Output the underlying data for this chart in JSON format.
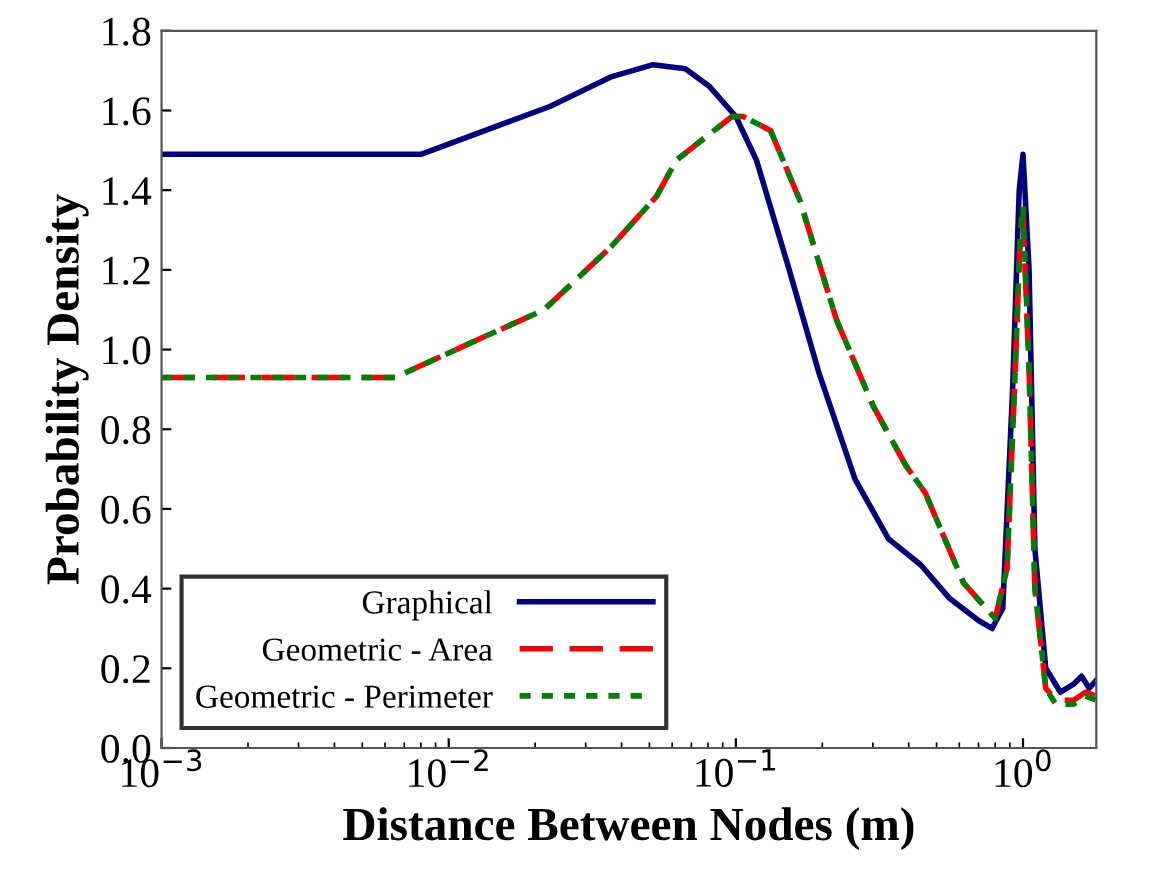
{
  "chart_data": {
    "type": "line",
    "xlabel": "Distance Between Nodes (m)",
    "ylabel": "Probability Density",
    "log": "x",
    "xlim": [
      0.001,
      1.8
    ],
    "ylim": [
      0,
      1.8
    ],
    "xticks": [
      {
        "value": 0.001,
        "label": "10$^{−3}$"
      },
      {
        "value": 0.01,
        "label": "10$^{−2}$"
      },
      {
        "value": 0.1,
        "label": "10$^{−1}$"
      },
      {
        "value": 1,
        "label": "10$^{0}$"
      }
    ],
    "yticks": [
      {
        "value": 0,
        "label": "0.0"
      },
      {
        "value": 0.2,
        "label": "0.2"
      },
      {
        "value": 0.4,
        "label": "0.4"
      },
      {
        "value": 0.6,
        "label": "0.6"
      },
      {
        "value": 0.8,
        "label": "0.8"
      },
      {
        "value": 1.0,
        "label": "1.0"
      },
      {
        "value": 1.2,
        "label": "1.2"
      },
      {
        "value": 1.4,
        "label": "1.4"
      },
      {
        "value": 1.6,
        "label": "1.6"
      },
      {
        "value": 1.8,
        "label": "1.8"
      }
    ],
    "grid": false,
    "legend": "bottom left",
    "series": [
      {
        "name": "Graphical",
        "color": "#000080",
        "line_style": "solid",
        "x": [
          0.001,
          0.008,
          0.0225,
          0.037,
          0.0515,
          0.0667,
          0.081,
          0.1,
          0.118,
          0.152,
          0.195,
          0.26,
          0.34,
          0.44,
          0.556,
          0.7,
          0.78,
          0.85,
          0.92,
          0.97,
          1.0,
          1.05,
          1.1,
          1.2,
          1.35,
          1.5,
          1.6,
          1.7,
          1.8
        ],
        "values": [
          1.49,
          1.49,
          1.61,
          1.685,
          1.715,
          1.705,
          1.66,
          1.585,
          1.475,
          1.21,
          0.94,
          0.675,
          0.525,
          0.46,
          0.375,
          0.32,
          0.3,
          0.35,
          0.9,
          1.4,
          1.49,
          1.2,
          0.5,
          0.2,
          0.14,
          0.16,
          0.18,
          0.15,
          0.17
        ]
      },
      {
        "name": "Geometric - Area",
        "color": "#ff0000",
        "line_style": "dashed",
        "x": [
          0.001,
          0.0065,
          0.0118,
          0.0215,
          0.037,
          0.053,
          0.062,
          0.097,
          0.106,
          0.132,
          0.167,
          0.224,
          0.3,
          0.39,
          0.457,
          0.62,
          0.8,
          0.88,
          0.94,
          0.98,
          1.0,
          1.05,
          1.1,
          1.2,
          1.3,
          1.5,
          1.65,
          1.8
        ],
        "values": [
          0.93,
          0.93,
          1.015,
          1.1,
          1.26,
          1.385,
          1.475,
          1.585,
          1.585,
          1.55,
          1.375,
          1.075,
          0.86,
          0.71,
          0.64,
          0.415,
          0.325,
          0.45,
          0.95,
          1.3,
          1.33,
          0.95,
          0.4,
          0.15,
          0.12,
          0.12,
          0.14,
          0.13
        ]
      },
      {
        "name": "Geometric - Perimeter",
        "color": "#008000",
        "line_style": "dotted",
        "x": [
          0.001,
          0.0065,
          0.0118,
          0.0215,
          0.037,
          0.053,
          0.062,
          0.097,
          0.106,
          0.132,
          0.167,
          0.224,
          0.3,
          0.39,
          0.457,
          0.62,
          0.8,
          0.88,
          0.94,
          0.98,
          1.0,
          1.05,
          1.1,
          1.2,
          1.3,
          1.5,
          1.65,
          1.8
        ],
        "values": [
          0.93,
          0.93,
          1.015,
          1.1,
          1.26,
          1.385,
          1.475,
          1.585,
          1.585,
          1.55,
          1.375,
          1.075,
          0.86,
          0.71,
          0.64,
          0.415,
          0.325,
          0.45,
          0.95,
          1.3,
          1.36,
          0.95,
          0.4,
          0.15,
          0.11,
          0.11,
          0.13,
          0.12
        ]
      }
    ]
  }
}
